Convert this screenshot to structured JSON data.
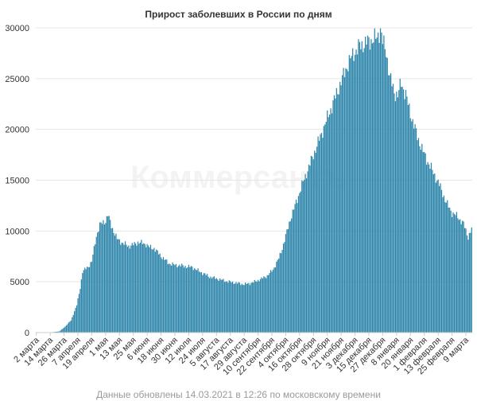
{
  "chart_data": {
    "type": "bar",
    "title": "Прирост заболевших в России по дням",
    "xlabel": "",
    "ylabel": "",
    "ylim": [
      0,
      30000
    ],
    "yticks": [
      0,
      5000,
      10000,
      15000,
      20000,
      25000,
      30000
    ],
    "grid": true,
    "legend": "none",
    "color": "#2e86ab",
    "x_start": "2 марта 2020",
    "x_end": "13 марта 2021",
    "xtick_labels": [
      "2 марта",
      "14 марта",
      "26 марта",
      "7 апреля",
      "19 апреля",
      "1 мая",
      "13 мая",
      "25 мая",
      "6 июня",
      "18 июня",
      "30 июня",
      "12 июля",
      "24 июля",
      "5 августа",
      "17 августа",
      "29 августа",
      "10 сентября",
      "22 сентября",
      "4 октября",
      "16 октября",
      "28 октября",
      "9 ноября",
      "21 ноября",
      "3 декабря",
      "15 декабря",
      "27 декабря",
      "8 января",
      "20 января",
      "1 февраля",
      "13 февраля",
      "25 февраля",
      "9 марта"
    ],
    "anchors": [
      [
        0,
        0
      ],
      [
        10,
        1
      ],
      [
        13,
        30
      ],
      [
        20,
        120
      ],
      [
        25,
        600
      ],
      [
        30,
        1200
      ],
      [
        35,
        2700
      ],
      [
        38,
        4400
      ],
      [
        40,
        6000
      ],
      [
        45,
        6500
      ],
      [
        48,
        7000
      ],
      [
        52,
        9500
      ],
      [
        55,
        10600
      ],
      [
        60,
        11000
      ],
      [
        62,
        11600
      ],
      [
        65,
        10500
      ],
      [
        70,
        9200
      ],
      [
        75,
        8800
      ],
      [
        80,
        8500
      ],
      [
        85,
        8700
      ],
      [
        88,
        8900
      ],
      [
        92,
        8800
      ],
      [
        95,
        8700
      ],
      [
        98,
        8400
      ],
      [
        102,
        8300
      ],
      [
        105,
        7900
      ],
      [
        110,
        7300
      ],
      [
        115,
        6800
      ],
      [
        120,
        6650
      ],
      [
        125,
        6600
      ],
      [
        130,
        6500
      ],
      [
        135,
        6450
      ],
      [
        140,
        6100
      ],
      [
        145,
        5800
      ],
      [
        150,
        5500
      ],
      [
        155,
        5350
      ],
      [
        160,
        5200
      ],
      [
        165,
        5050
      ],
      [
        170,
        4950
      ],
      [
        175,
        4850
      ],
      [
        180,
        4750
      ],
      [
        185,
        4850
      ],
      [
        190,
        5050
      ],
      [
        195,
        5300
      ],
      [
        200,
        5600
      ],
      [
        205,
        6200
      ],
      [
        210,
        7300
      ],
      [
        213,
        8300
      ],
      [
        216,
        9500
      ],
      [
        220,
        11200
      ],
      [
        225,
        12800
      ],
      [
        230,
        14500
      ],
      [
        235,
        16000
      ],
      [
        240,
        17500
      ],
      [
        245,
        19000
      ],
      [
        250,
        20500
      ],
      [
        255,
        22000
      ],
      [
        260,
        23500
      ],
      [
        265,
        25000
      ],
      [
        270,
        26500
      ],
      [
        275,
        27500
      ],
      [
        280,
        28200
      ],
      [
        285,
        28500
      ],
      [
        290,
        28800
      ],
      [
        295,
        29000
      ],
      [
        298,
        29900
      ],
      [
        300,
        28600
      ],
      [
        303,
        27700
      ],
      [
        306,
        25200
      ],
      [
        310,
        23700
      ],
      [
        313,
        23300
      ],
      [
        316,
        24600
      ],
      [
        320,
        23400
      ],
      [
        323,
        22000
      ],
      [
        326,
        20800
      ],
      [
        330,
        19300
      ],
      [
        335,
        17800
      ],
      [
        340,
        16600
      ],
      [
        345,
        15500
      ],
      [
        350,
        14300
      ],
      [
        355,
        12800
      ],
      [
        360,
        11800
      ],
      [
        365,
        11400
      ],
      [
        370,
        10700
      ],
      [
        374,
        9400
      ],
      [
        377,
        10200
      ]
    ]
  },
  "footer": "Данные обновлены 14.03.2021 в 12:26 по московскому времени",
  "watermark": "Коммерсантъ"
}
